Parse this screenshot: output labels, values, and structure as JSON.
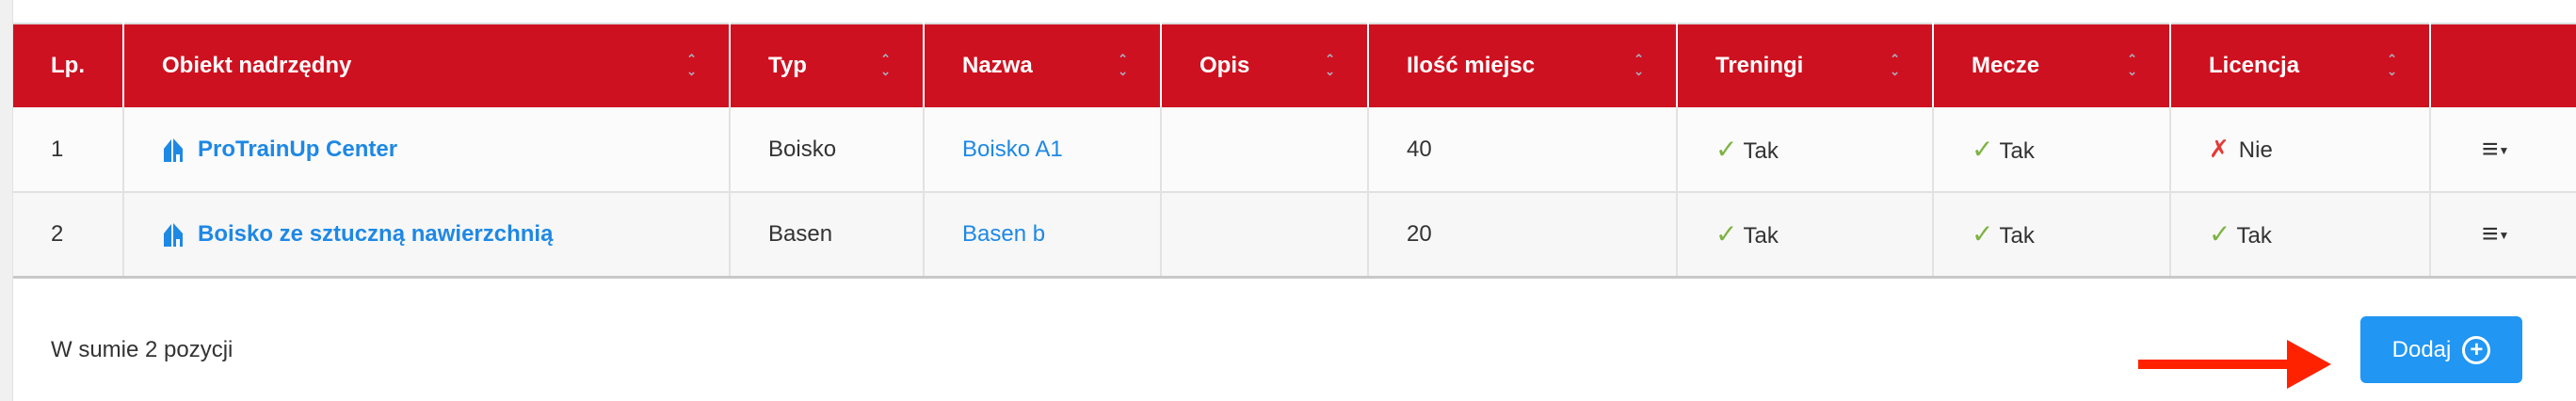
{
  "table": {
    "columns": [
      {
        "label": "Lp.",
        "sortable": false
      },
      {
        "label": "Obiekt nadrzędny",
        "sortable": true
      },
      {
        "label": "Typ",
        "sortable": true
      },
      {
        "label": "Nazwa",
        "sortable": true
      },
      {
        "label": "Opis",
        "sortable": true
      },
      {
        "label": "Ilość miejsc",
        "sortable": true
      },
      {
        "label": "Treningi",
        "sortable": true
      },
      {
        "label": "Mecze",
        "sortable": true
      },
      {
        "label": "Licencja",
        "sortable": true
      },
      {
        "label": "",
        "sortable": false
      }
    ],
    "rows": [
      {
        "lp": "1",
        "parent": "ProTrainUp Center",
        "type": "Boisko",
        "name": "Boisko A1",
        "desc": "",
        "seats": "40",
        "trainings": "Tak",
        "trainings_ok": true,
        "matches": "Tak",
        "matches_ok": true,
        "license": "Nie",
        "license_ok": false
      },
      {
        "lp": "2",
        "parent": "Boisko ze sztuczną nawierzchnią",
        "type": "Basen",
        "name": "Basen b",
        "desc": "",
        "seats": "20",
        "trainings": "Tak",
        "trainings_ok": true,
        "matches": "Tak",
        "matches_ok": true,
        "license": "Tak",
        "license_ok": true
      }
    ]
  },
  "footer": {
    "total": "W sumie 2 pozycji",
    "add_label": "Dodaj"
  },
  "colors": {
    "header": "#ce1120",
    "link": "#1e88e5",
    "check": "#7cb342",
    "cross": "#e53935",
    "button": "#2196f3",
    "arrow": "#ff2200"
  }
}
